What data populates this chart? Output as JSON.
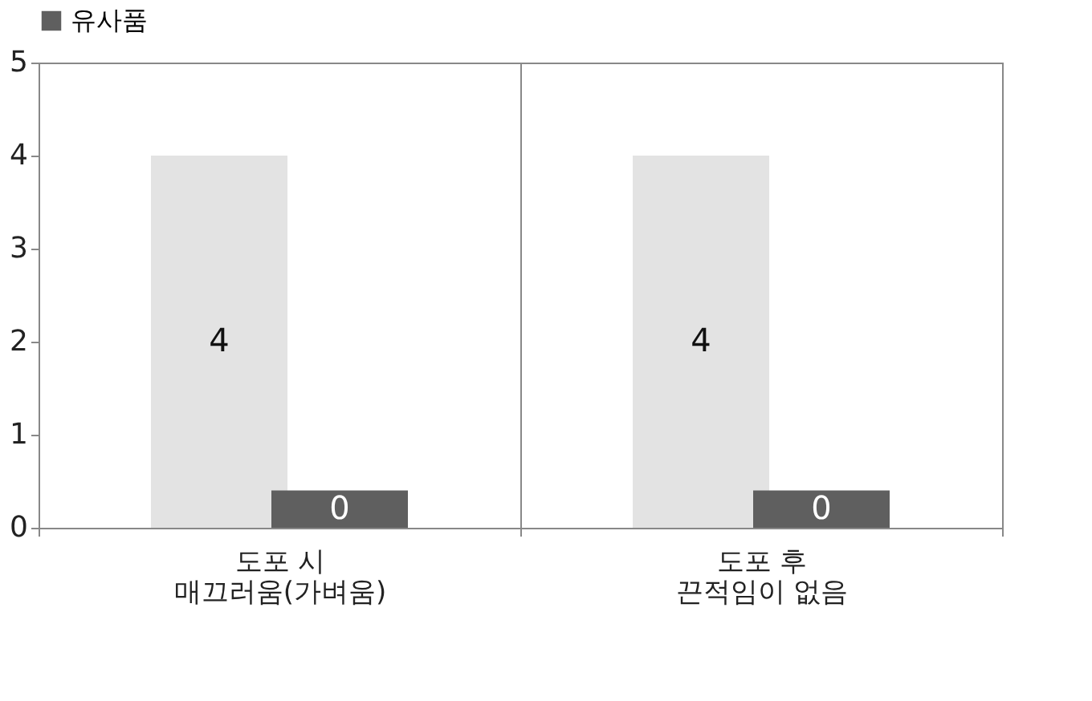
{
  "chart_data": {
    "type": "bar",
    "categories": [
      "도포 시\n매끄러움(가벼움)",
      "도포 후\n끈적임이 없음"
    ],
    "series": [
      {
        "color": "#e3e3e3",
        "values": [
          4,
          4
        ],
        "value_labels": [
          "4",
          "4"
        ]
      },
      {
        "name": "유사품",
        "color": "#5f5f5f",
        "values": [
          0.4,
          0.4
        ],
        "value_labels": [
          "0",
          "0"
        ]
      }
    ],
    "ylim": [
      0,
      5
    ],
    "yticks": [
      0,
      1,
      2,
      3,
      4,
      5
    ],
    "grid": "x",
    "legend": "top"
  }
}
